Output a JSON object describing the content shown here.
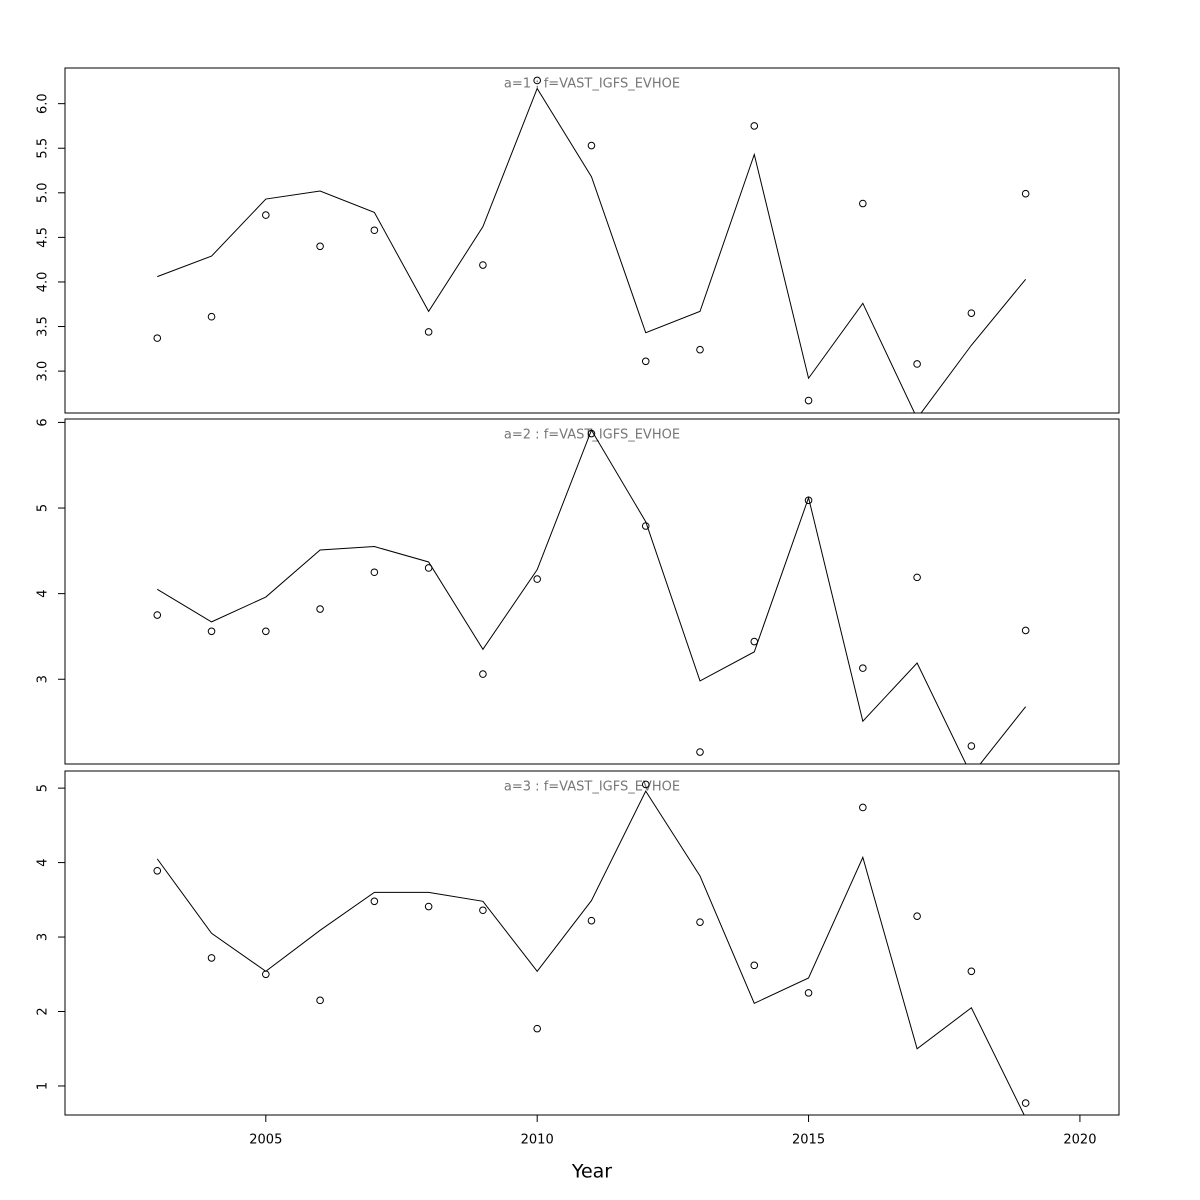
{
  "chart_data": [
    {
      "type": "line",
      "title": "a=1 : f=VAST_IGFS_EVHOE",
      "x": [
        2003,
        2004,
        2005,
        2006,
        2007,
        2008,
        2009,
        2010,
        2011,
        2012,
        2013,
        2014,
        2015,
        2016,
        2017,
        2018,
        2019
      ],
      "xlim": [
        2001.3,
        2020.72
      ],
      "ylim": [
        2.53,
        6.4
      ],
      "yticks": [
        {
          "value": 3,
          "label": "3.0"
        },
        {
          "value": 3.5,
          "label": "3.5"
        },
        {
          "value": 4,
          "label": "4.0"
        },
        {
          "value": 4.5,
          "label": "4.5"
        },
        {
          "value": 5,
          "label": "5.0"
        },
        {
          "value": 5.5,
          "label": "5.5"
        },
        {
          "value": 6,
          "label": "6.0"
        }
      ],
      "series": [
        {
          "style": "line",
          "color": "#000000",
          "values": [
            4.06,
            4.29,
            4.93,
            5.02,
            4.78,
            3.67,
            4.62,
            6.17,
            5.18,
            3.43,
            3.67,
            5.43,
            2.92,
            3.76,
            2.47,
            3.29,
            4.03
          ]
        },
        {
          "style": "points",
          "color": "#000000",
          "values": [
            3.37,
            3.61,
            4.75,
            4.4,
            4.58,
            3.44,
            4.19,
            6.26,
            5.53,
            3.11,
            3.24,
            5.75,
            2.67,
            4.88,
            3.08,
            3.65,
            4.99
          ]
        }
      ]
    },
    {
      "type": "line",
      "title": "a=2 : f=VAST_IGFS_EVHOE",
      "x": [
        2003,
        2004,
        2005,
        2006,
        2007,
        2008,
        2009,
        2010,
        2011,
        2012,
        2013,
        2014,
        2015,
        2016,
        2017,
        2018,
        2019
      ],
      "xlim": [
        2001.3,
        2020.72
      ],
      "ylim": [
        2.01,
        6.04
      ],
      "yticks": [
        3,
        4,
        5,
        6
      ],
      "series": [
        {
          "style": "line",
          "color": "#000000",
          "values": [
            4.05,
            3.67,
            3.96,
            4.51,
            4.55,
            4.37,
            3.35,
            4.28,
            5.91,
            4.84,
            2.98,
            3.32,
            5.12,
            2.51,
            3.19,
            1.88,
            2.68
          ]
        },
        {
          "style": "points",
          "color": "#000000",
          "values": [
            3.75,
            3.56,
            3.56,
            3.82,
            4.25,
            4.3,
            3.06,
            4.17,
            5.87,
            4.79,
            2.15,
            3.44,
            5.09,
            3.13,
            4.19,
            2.22,
            3.57
          ]
        }
      ]
    },
    {
      "type": "line",
      "title": "a=3 : f=VAST_IGFS_EVHOE",
      "xlabel": "Year",
      "x": [
        2003,
        2004,
        2005,
        2006,
        2007,
        2008,
        2009,
        2010,
        2011,
        2012,
        2013,
        2014,
        2015,
        2016,
        2017,
        2018,
        2019
      ],
      "xlim": [
        2001.3,
        2020.72
      ],
      "ylim": [
        0.61,
        5.23
      ],
      "xticks": [
        2005,
        2010,
        2015,
        2020
      ],
      "yticks": [
        1,
        2,
        3,
        4,
        5
      ],
      "series": [
        {
          "style": "line",
          "color": "#000000",
          "values": [
            4.05,
            3.05,
            2.54,
            3.09,
            3.6,
            3.6,
            3.48,
            2.54,
            3.49,
            4.96,
            3.82,
            2.11,
            2.45,
            4.07,
            1.5,
            2.05,
            0.57
          ]
        },
        {
          "style": "points",
          "color": "#000000",
          "values": [
            3.89,
            2.72,
            2.5,
            2.15,
            3.48,
            3.41,
            3.36,
            1.77,
            3.22,
            5.05,
            3.2,
            2.62,
            2.25,
            4.74,
            3.28,
            2.54,
            0.77
          ]
        }
      ]
    }
  ]
}
